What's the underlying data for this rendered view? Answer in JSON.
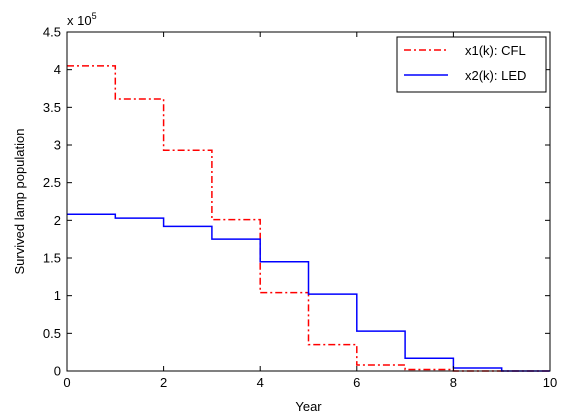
{
  "chart_data": {
    "type": "line",
    "step": true,
    "xlabel": "Year",
    "ylabel": "Survived lamp population",
    "y_multiplier_label": "x 10",
    "y_multiplier_exp": "5",
    "xlim": [
      0,
      10
    ],
    "ylim": [
      0,
      4.5
    ],
    "xticks": [
      "0",
      "2",
      "4",
      "6",
      "8",
      "10"
    ],
    "yticks": [
      "0",
      "0.5",
      "1",
      "1.5",
      "2",
      "2.5",
      "3",
      "3.5",
      "4",
      "4.5"
    ],
    "grid": false,
    "legend_position": "top-right",
    "x": [
      0,
      1,
      2,
      3,
      4,
      5,
      6,
      7,
      8,
      9,
      10
    ],
    "series": [
      {
        "name": "x1(k): CFL",
        "color": "#ff0000",
        "line_style": "dash-dot",
        "values": [
          4.05,
          3.61,
          2.93,
          2.01,
          1.04,
          0.35,
          0.08,
          0.02,
          0.0,
          0.0,
          0.0
        ]
      },
      {
        "name": "x2(k): LED",
        "color": "#0000ff",
        "line_style": "solid",
        "values": [
          2.08,
          2.03,
          1.92,
          1.75,
          1.45,
          1.02,
          0.53,
          0.17,
          0.04,
          0.0,
          0.0
        ]
      }
    ]
  }
}
